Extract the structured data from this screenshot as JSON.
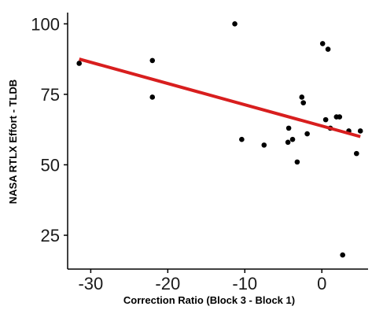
{
  "chart_data": {
    "type": "scatter",
    "xlabel": "Correction Ratio (Block 3 - Block 1)",
    "ylabel": "NASA RTLX Effort  - TLDB",
    "xlim": [
      -33,
      6
    ],
    "ylim": [
      13,
      104
    ],
    "x_ticks": [
      {
        "value": -30,
        "label": "-30"
      },
      {
        "value": -20,
        "label": "-20"
      },
      {
        "value": -10,
        "label": "-10"
      },
      {
        "value": 0,
        "label": "0"
      }
    ],
    "y_ticks": [
      {
        "value": 25,
        "label": "25"
      },
      {
        "value": 50,
        "label": "50"
      },
      {
        "value": 75,
        "label": "75"
      },
      {
        "value": 100,
        "label": "100"
      }
    ],
    "grid": false,
    "points": [
      {
        "x": -31.5,
        "y": 86
      },
      {
        "x": -22,
        "y": 87
      },
      {
        "x": -22,
        "y": 74
      },
      {
        "x": -11.3,
        "y": 100
      },
      {
        "x": -10.4,
        "y": 59
      },
      {
        "x": -7.5,
        "y": 57
      },
      {
        "x": -4.4,
        "y": 58
      },
      {
        "x": -4.3,
        "y": 63
      },
      {
        "x": -3.8,
        "y": 59
      },
      {
        "x": -3.2,
        "y": 51
      },
      {
        "x": -2.6,
        "y": 74
      },
      {
        "x": -2.4,
        "y": 72
      },
      {
        "x": -1.9,
        "y": 61
      },
      {
        "x": 0.1,
        "y": 93
      },
      {
        "x": 0.5,
        "y": 66
      },
      {
        "x": 0.8,
        "y": 91
      },
      {
        "x": 1.1,
        "y": 63
      },
      {
        "x": 1.9,
        "y": 67
      },
      {
        "x": 2.3,
        "y": 67
      },
      {
        "x": 2.7,
        "y": 18
      },
      {
        "x": 3.5,
        "y": 62
      },
      {
        "x": 4.5,
        "y": 54
      },
      {
        "x": 5.0,
        "y": 62
      }
    ],
    "trend_line": {
      "x": [
        -31.5,
        5
      ],
      "y": [
        87.5,
        60
      ],
      "color": "#d81e1e"
    },
    "point_color": "#000000"
  }
}
